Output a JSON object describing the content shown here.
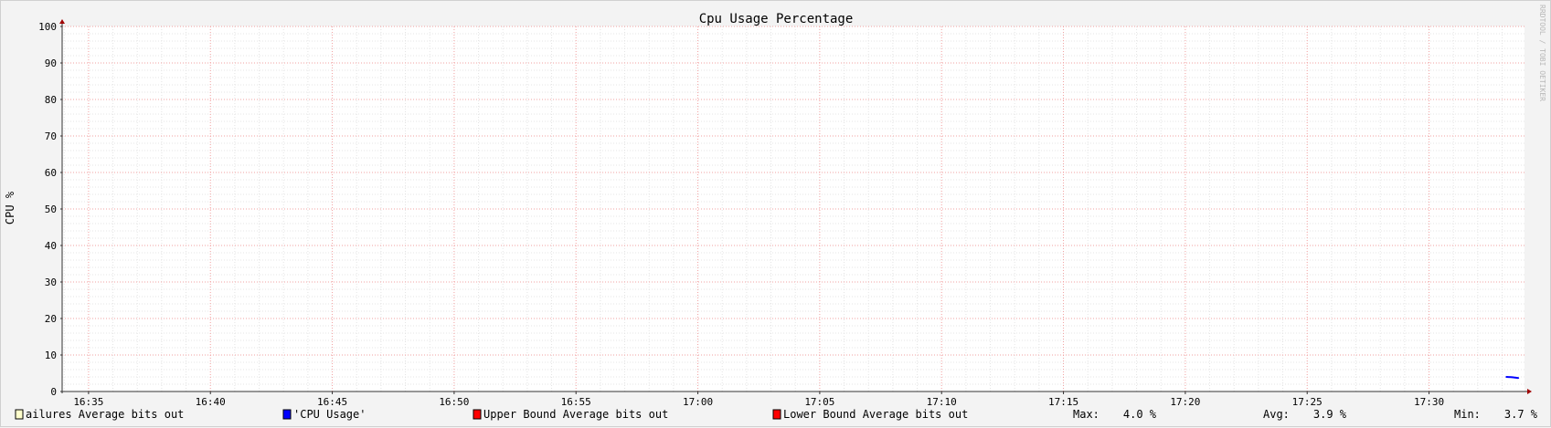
{
  "chart_data": {
    "type": "line",
    "title": "Cpu Usage Percentage",
    "ylabel": "CPU %",
    "xlabel": "",
    "ylim": [
      0,
      100
    ],
    "yticks": [
      0,
      10,
      20,
      30,
      40,
      50,
      60,
      70,
      80,
      90,
      100
    ],
    "xlim": [
      "16:33:55",
      "17:33:55"
    ],
    "xticks": [
      "16:35",
      "16:40",
      "16:45",
      "16:50",
      "16:55",
      "17:00",
      "17:05",
      "17:10",
      "17:15",
      "17:20",
      "17:25",
      "17:30"
    ],
    "grid": true,
    "series": [
      {
        "name": "'CPU Usage'",
        "color": "#0000ff",
        "points": [
          {
            "x": "17:33:10",
            "y": 4.0
          },
          {
            "x": "17:33:25",
            "y": 3.9
          },
          {
            "x": "17:33:40",
            "y": 3.7
          }
        ]
      }
    ],
    "legend": {
      "position": "bottom",
      "items": [
        {
          "label": "ailures Average bits out",
          "color": "#ffffcc"
        },
        {
          "label": "'CPU Usage'",
          "color": "#0000ff"
        },
        {
          "label": "Upper Bound Average bits out",
          "color": "#ff0000"
        },
        {
          "label": "Lower Bound Average bits out",
          "color": "#ff0000"
        }
      ]
    },
    "stats": [
      {
        "label": "Max:",
        "value": "4.0 %"
      },
      {
        "label": "Avg:",
        "value": "3.9 %"
      },
      {
        "label": "Min:",
        "value": "3.7 %"
      }
    ],
    "watermark": "RRDTOOL / TOBI OETIKER"
  }
}
